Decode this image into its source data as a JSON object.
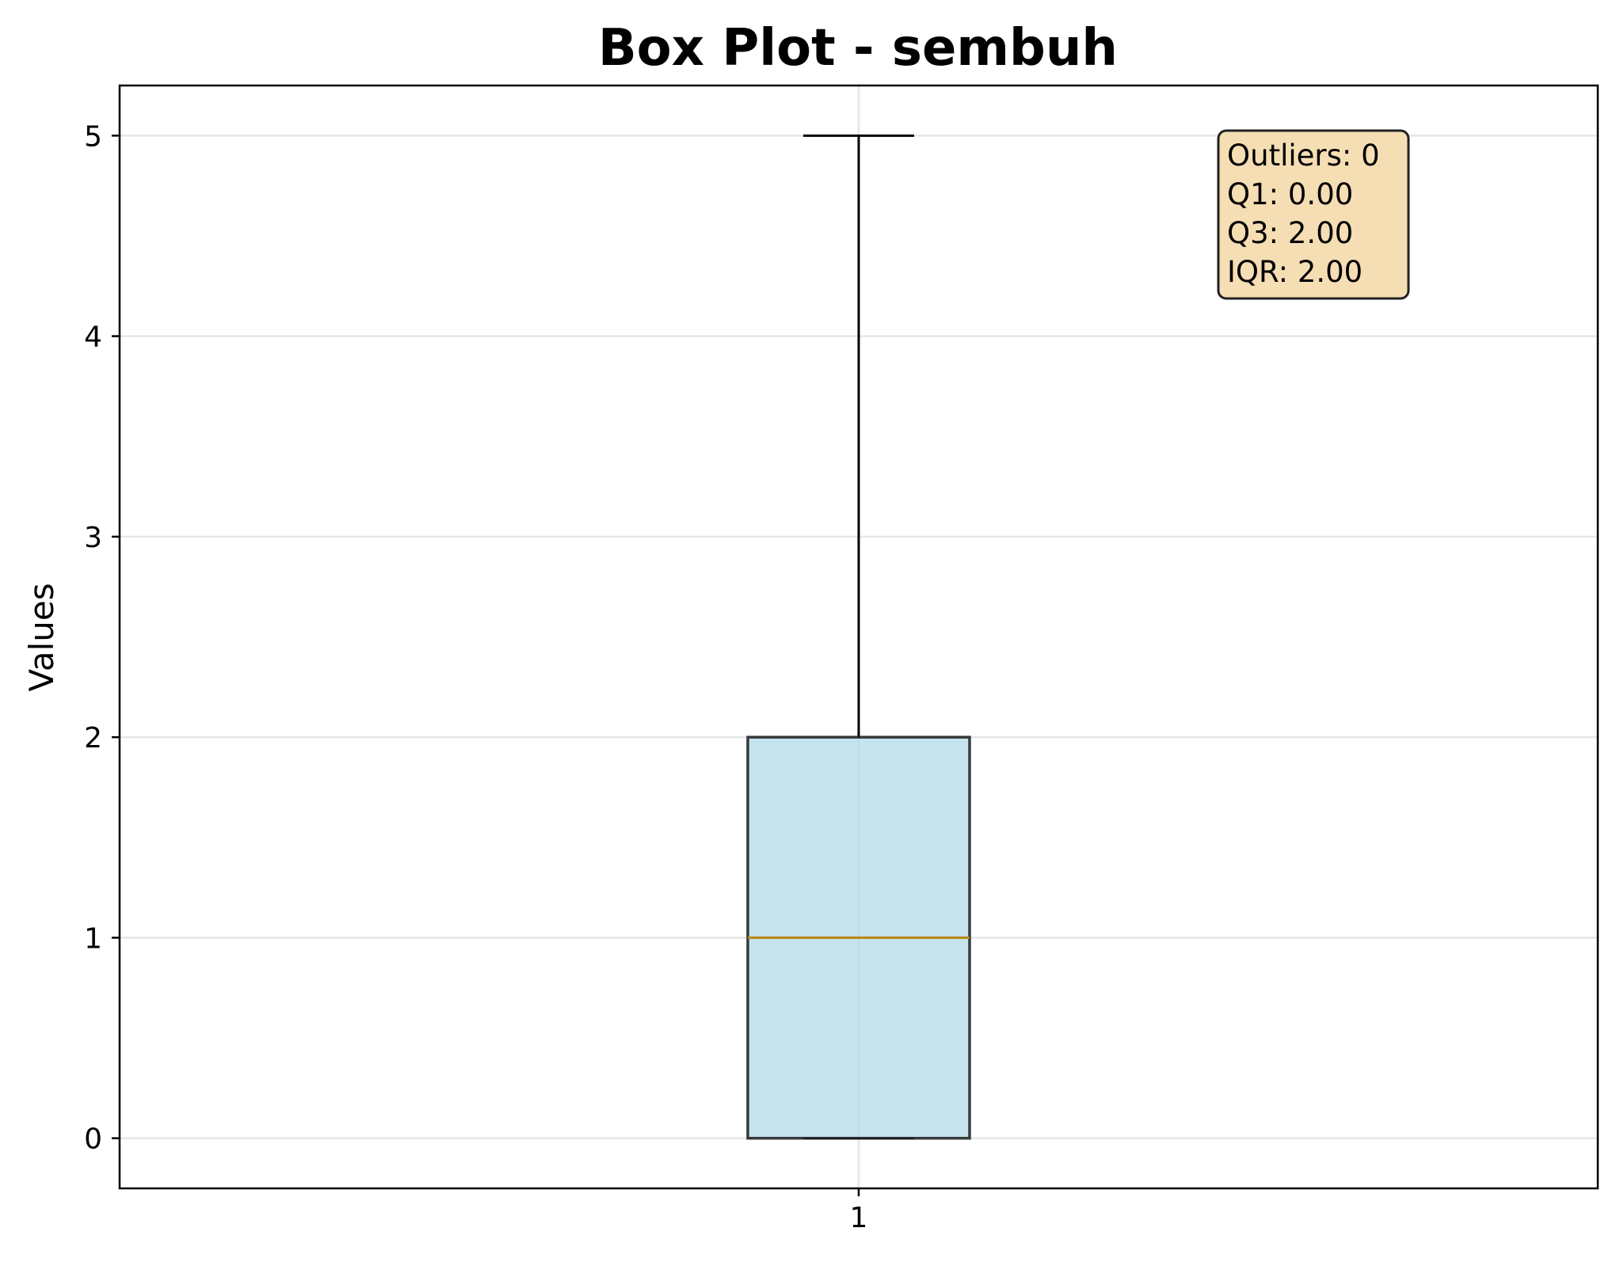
{
  "chart_data": {
    "type": "box",
    "title": "Box Plot - sembuh",
    "xlabel": "",
    "ylabel": "Values",
    "categories": [
      "1"
    ],
    "boxes": [
      {
        "category": "1",
        "whisker_low": 0,
        "q1": 0,
        "median": 1,
        "q3": 2,
        "whisker_high": 5,
        "outliers": []
      }
    ],
    "ylim": [
      -0.25,
      5.25
    ],
    "yticks": [
      "0",
      "1",
      "2",
      "3",
      "4",
      "5"
    ],
    "grid": true,
    "colors": {
      "box_fill": "#add8e6",
      "box_edge": "#1a1a1a",
      "median": "#b8860b",
      "grid": "#e6e6e6",
      "stats_box_fill": "#f5deb3",
      "stats_box_edge": "#222222"
    },
    "stats_box": {
      "placement": "top-right",
      "lines": [
        "Outliers: 0",
        "Q1: 0.00",
        "Q3: 2.00",
        "IQR: 2.00"
      ]
    }
  }
}
